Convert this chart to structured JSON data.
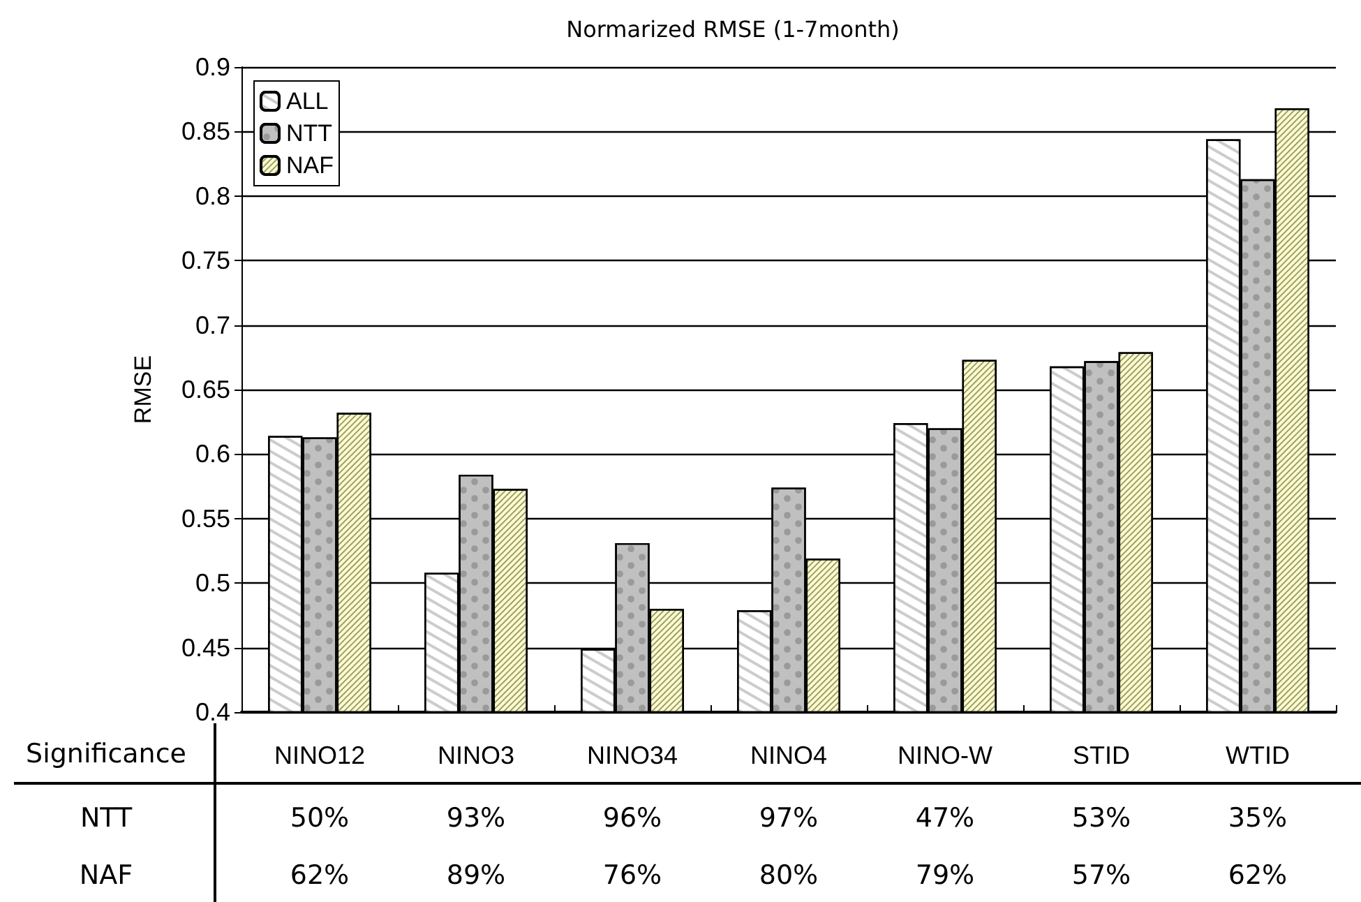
{
  "chart_data": {
    "type": "bar",
    "title": "Normarized RMSE (1-7month)",
    "ylabel": "RMSE",
    "categories": [
      "NINO12",
      "NINO3",
      "NINO34",
      "NINO4",
      "NINO-W",
      "STID",
      "WTID"
    ],
    "series": [
      {
        "name": "ALL",
        "color": "#ffffff",
        "values": [
          0.614,
          0.508,
          0.449,
          0.479,
          0.624,
          0.668,
          0.844
        ]
      },
      {
        "name": "NTT",
        "color": "#c0c0c0",
        "values": [
          0.613,
          0.584,
          0.531,
          0.574,
          0.62,
          0.672,
          0.813
        ]
      },
      {
        "name": "NAF",
        "color": "#ffffcc",
        "values": [
          0.632,
          0.573,
          0.48,
          0.519,
          0.673,
          0.679,
          0.868
        ]
      }
    ],
    "ylim": [
      0.4,
      0.9
    ],
    "yticks": [
      0.4,
      0.45,
      0.5,
      0.55,
      0.6,
      0.65,
      0.7,
      0.75,
      0.8,
      0.85,
      0.9
    ],
    "grid": "y",
    "legend": "top left",
    "annotations": [
      "Significance",
      "NTT",
      "50%",
      "93%",
      "96%",
      "97%",
      "47%",
      "53%",
      "35%",
      "NAF",
      "62%",
      "89%",
      "76%",
      "80%",
      "79%",
      "57%",
      "62%"
    ]
  }
}
